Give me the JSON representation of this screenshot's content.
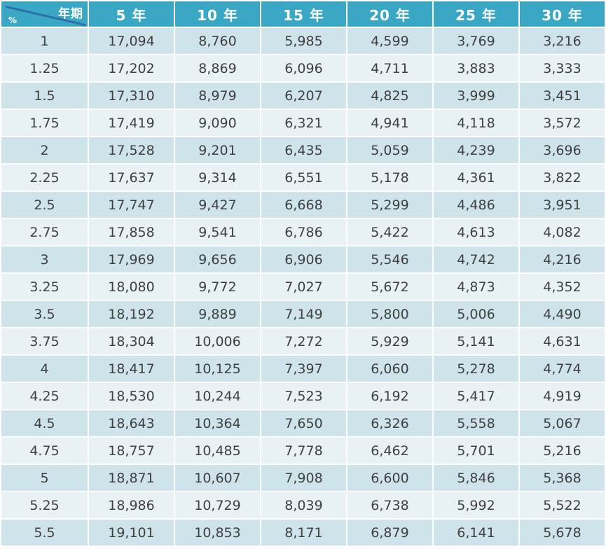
{
  "header": {
    "corner_top": "年期",
    "corner_bottom": "%",
    "columns": [
      "5 年",
      "10 年",
      "15 年",
      "20 年",
      "25 年",
      "30 年"
    ]
  },
  "rows": [
    {
      "rate": "1",
      "values": [
        "17,094",
        "8,760",
        "5,985",
        "4,599",
        "3,769",
        "3,216"
      ]
    },
    {
      "rate": "1.25",
      "values": [
        "17,202",
        "8,869",
        "6,096",
        "4,711",
        "3,883",
        "3,333"
      ]
    },
    {
      "rate": "1.5",
      "values": [
        "17,310",
        "8,979",
        "6,207",
        "4,825",
        "3,999",
        "3,451"
      ]
    },
    {
      "rate": "1.75",
      "values": [
        "17,419",
        "9,090",
        "6,321",
        "4,941",
        "4,118",
        "3,572"
      ]
    },
    {
      "rate": "2",
      "values": [
        "17,528",
        "9,201",
        "6,435",
        "5,059",
        "4,239",
        "3,696"
      ]
    },
    {
      "rate": "2.25",
      "values": [
        "17,637",
        "9,314",
        "6,551",
        "5,178",
        "4,361",
        "3,822"
      ]
    },
    {
      "rate": "2.5",
      "values": [
        "17,747",
        "9,427",
        "6,668",
        "5,299",
        "4,486",
        "3,951"
      ]
    },
    {
      "rate": "2.75",
      "values": [
        "17,858",
        "9,541",
        "6,786",
        "5,422",
        "4,613",
        "4,082"
      ]
    },
    {
      "rate": "3",
      "values": [
        "17,969",
        "9,656",
        "6,906",
        "5,546",
        "4,742",
        "4,216"
      ]
    },
    {
      "rate": "3.25",
      "values": [
        "18,080",
        "9,772",
        "7,027",
        "5,672",
        "4,873",
        "4,352"
      ]
    },
    {
      "rate": "3.5",
      "values": [
        "18,192",
        "9,889",
        "7,149",
        "5,800",
        "5,006",
        "4,490"
      ]
    },
    {
      "rate": "3.75",
      "values": [
        "18,304",
        "10,006",
        "7,272",
        "5,929",
        "5,141",
        "4,631"
      ]
    },
    {
      "rate": "4",
      "values": [
        "18,417",
        "10,125",
        "7,397",
        "6,060",
        "5,278",
        "4,774"
      ]
    },
    {
      "rate": "4.25",
      "values": [
        "18,530",
        "10,244",
        "7,523",
        "6,192",
        "5,417",
        "4,919"
      ]
    },
    {
      "rate": "4.5",
      "values": [
        "18,643",
        "10,364",
        "7,650",
        "6,326",
        "5,558",
        "5,067"
      ]
    },
    {
      "rate": "4.75",
      "values": [
        "18,757",
        "10,485",
        "7,778",
        "6,462",
        "5,701",
        "5,216"
      ]
    },
    {
      "rate": "5",
      "values": [
        "18,871",
        "10,607",
        "7,908",
        "6,600",
        "5,846",
        "5,368"
      ]
    },
    {
      "rate": "5.25",
      "values": [
        "18,986",
        "10,729",
        "8,039",
        "6,738",
        "5,992",
        "5,522"
      ]
    },
    {
      "rate": "5.5",
      "values": [
        "19,101",
        "10,853",
        "8,171",
        "6,879",
        "6,141",
        "5,678"
      ]
    }
  ],
  "colors": {
    "header_bg": "#3aa8c4",
    "row_odd": "#cfe3ea",
    "row_even": "#e8f1f4",
    "diagonal": "#2c6fa8"
  }
}
